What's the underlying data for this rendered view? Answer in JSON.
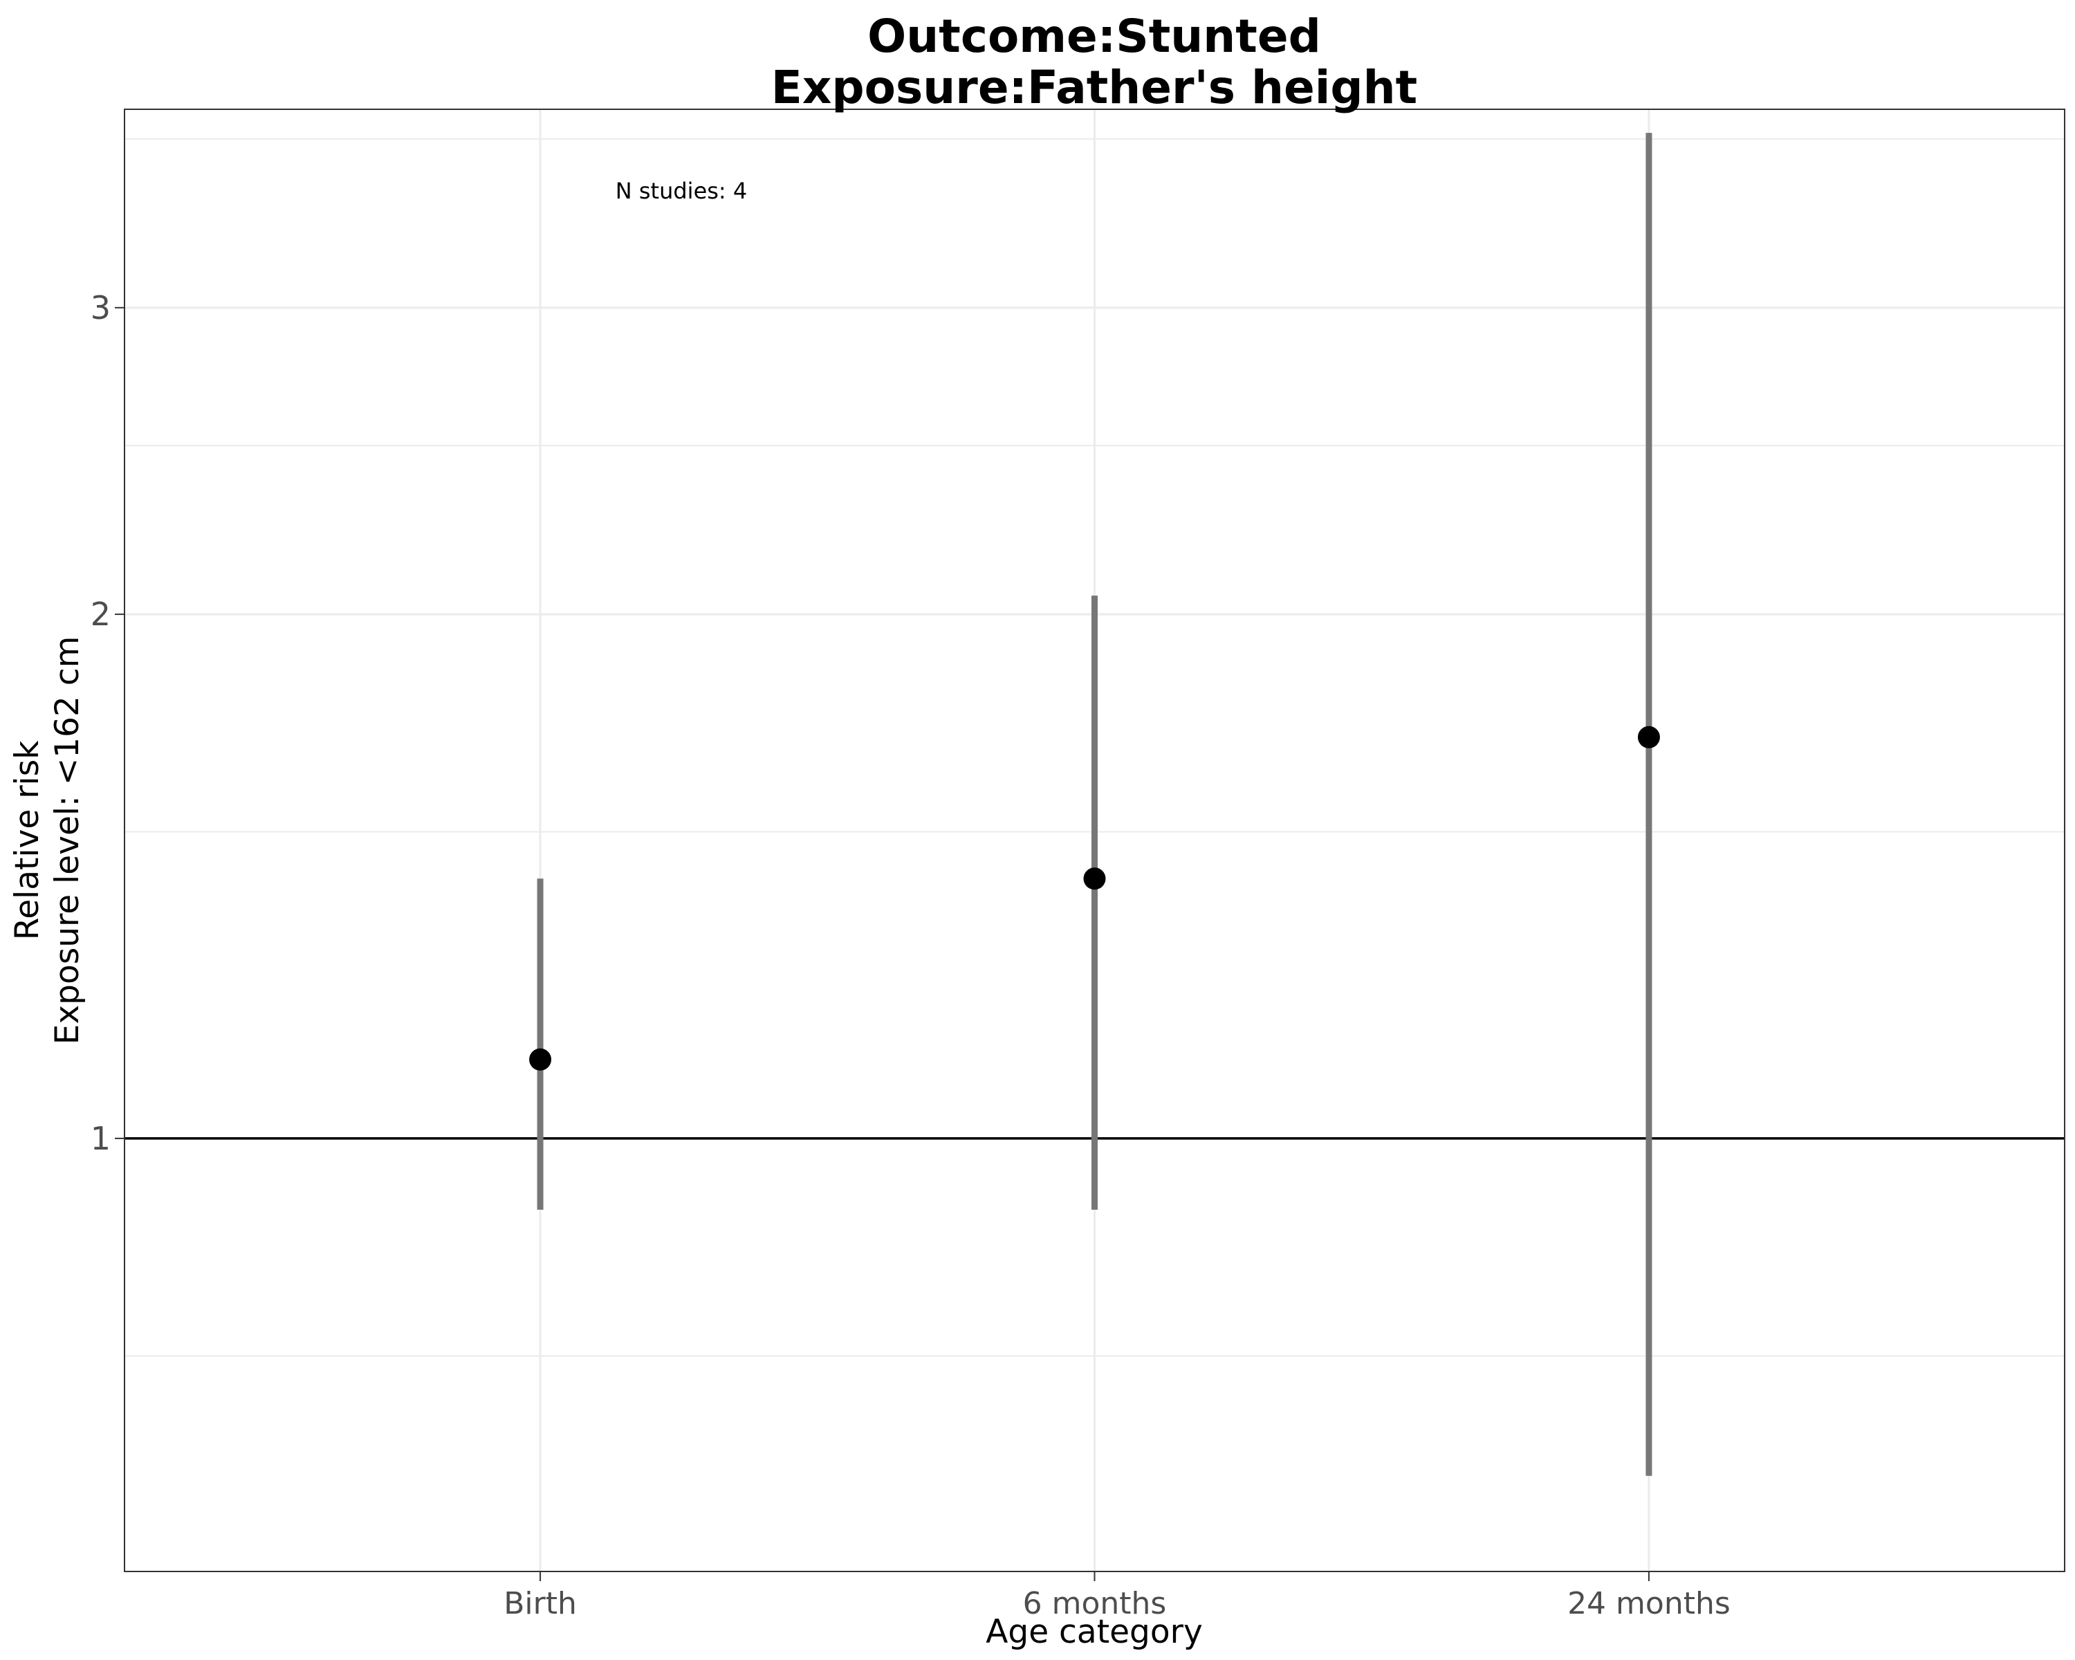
{
  "chart_data": {
    "type": "scatter",
    "title_line1": "Outcome:Stunted",
    "title_line2": "Exposure:Father's height",
    "xlabel": "Age category",
    "ylabel_line1": "Relative risk",
    "ylabel_line2": "Exposure level: <162 cm",
    "y_scale": "log",
    "ylim": [
      0.564,
      3.9
    ],
    "y_ticks": [
      1,
      2,
      3
    ],
    "y_minor_ticks": [
      0.75,
      1.5,
      2.5,
      3.75
    ],
    "categories": [
      "Birth",
      "6 months",
      "24 months"
    ],
    "points": [
      {
        "category": "Birth",
        "estimate": 1.11,
        "lower": 0.91,
        "upper": 1.41
      },
      {
        "category": "6 months",
        "estimate": 1.41,
        "lower": 0.91,
        "upper": 2.05
      },
      {
        "category": "24 months",
        "estimate": 1.7,
        "lower": 0.64,
        "upper": 3.78
      }
    ],
    "reference_line": 1,
    "annotation": "N studies: 4",
    "grid": true,
    "legend": "none"
  },
  "colors": {
    "point": "#000000",
    "interval": "#777777",
    "grid": "#ebebeb",
    "reference": "#000000",
    "panel_border": "#333333"
  }
}
